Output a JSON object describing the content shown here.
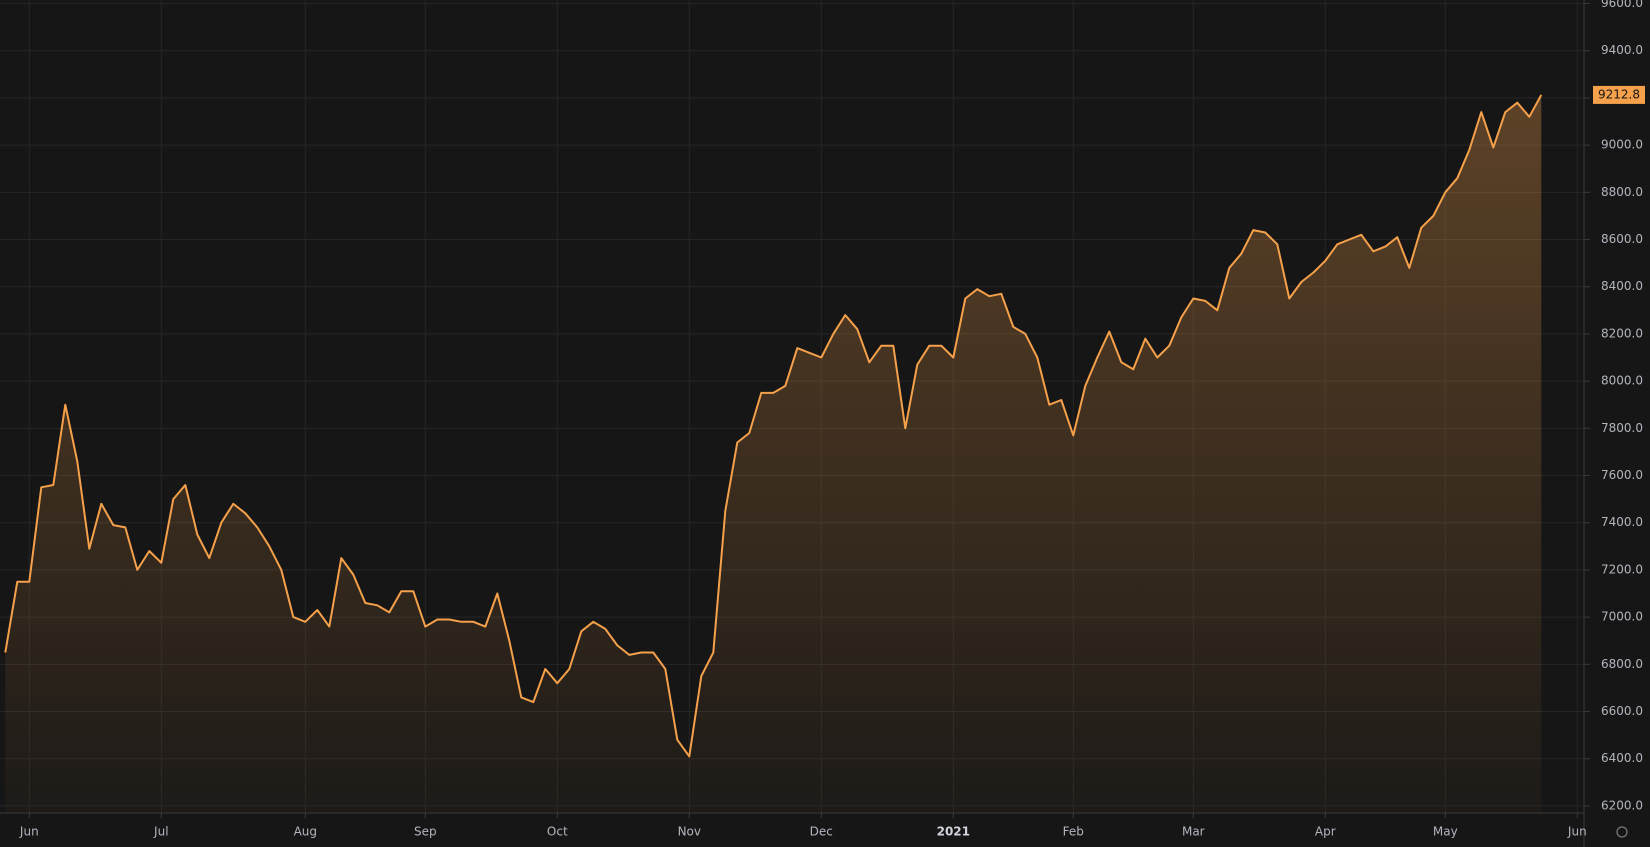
{
  "chart_data": {
    "type": "area",
    "color": "#f5a04a",
    "grid": true,
    "ylim": [
      6170,
      9615
    ],
    "yticks": [
      {
        "value": 6200,
        "label": "6200.0"
      },
      {
        "value": 6400,
        "label": "6400.0"
      },
      {
        "value": 6600,
        "label": "6600.0"
      },
      {
        "value": 6800,
        "label": "6800.0"
      },
      {
        "value": 7000,
        "label": "7000.0"
      },
      {
        "value": 7200,
        "label": "7200.0"
      },
      {
        "value": 7400,
        "label": "7400.0"
      },
      {
        "value": 7600,
        "label": "7600.0"
      },
      {
        "value": 7800,
        "label": "7800.0"
      },
      {
        "value": 8000,
        "label": "8000.0"
      },
      {
        "value": 8200,
        "label": "8200.0"
      },
      {
        "value": 8400,
        "label": "8400.0"
      },
      {
        "value": 8600,
        "label": "8600.0"
      },
      {
        "value": 8800,
        "label": "8800.0"
      },
      {
        "value": 9000,
        "label": "9000.0"
      },
      {
        "value": 9200,
        "label": "9200.0"
      },
      {
        "value": 9400,
        "label": "9400.0"
      },
      {
        "value": 9600,
        "label": "9600.0"
      }
    ],
    "categories": [
      null,
      null,
      "Jun",
      null,
      null,
      null,
      null,
      null,
      null,
      null,
      null,
      null,
      null,
      "Jul",
      null,
      null,
      null,
      null,
      null,
      null,
      null,
      null,
      null,
      null,
      null,
      "Aug",
      null,
      null,
      null,
      null,
      null,
      null,
      null,
      null,
      null,
      "Sep",
      null,
      null,
      null,
      null,
      null,
      null,
      null,
      null,
      null,
      null,
      "Oct",
      null,
      null,
      null,
      null,
      null,
      null,
      null,
      null,
      null,
      null,
      "Nov",
      null,
      null,
      null,
      null,
      null,
      null,
      null,
      null,
      null,
      null,
      "Dec",
      null,
      null,
      null,
      null,
      null,
      null,
      null,
      null,
      null,
      null,
      "2021",
      null,
      null,
      null,
      null,
      null,
      null,
      null,
      null,
      null,
      "Feb",
      null,
      null,
      null,
      null,
      null,
      null,
      null,
      null,
      null,
      "Mar",
      null,
      null,
      null,
      null,
      null,
      null,
      null,
      null,
      null,
      null,
      "Apr",
      null,
      null,
      null,
      null,
      null,
      null,
      null,
      null,
      null,
      "May",
      null,
      null,
      null,
      null,
      null,
      null,
      null,
      null,
      null,
      null,
      "Jun"
    ],
    "values": [
      6850,
      7150,
      7150,
      7550,
      7560,
      7900,
      7660,
      7290,
      7480,
      7390,
      7380,
      7200,
      7280,
      7230,
      7500,
      7560,
      7350,
      7250,
      7400,
      7480,
      7440,
      7380,
      7300,
      7200,
      7000,
      6980,
      7030,
      6960,
      7250,
      7180,
      7060,
      7050,
      7020,
      7110,
      7110,
      6960,
      6990,
      6990,
      6980,
      6980,
      6960,
      7100,
      6900,
      6660,
      6640,
      6780,
      6720,
      6780,
      6940,
      6980,
      6950,
      6880,
      6840,
      6850,
      6850,
      6780,
      6480,
      6410,
      6750,
      6850,
      7450,
      7740,
      7780,
      7950,
      7950,
      7980,
      8140,
      8120,
      8100,
      8200,
      8280,
      8220,
      8080,
      8150,
      8150,
      7800,
      8070,
      8150,
      8150,
      8100,
      8350,
      8390,
      8360,
      8370,
      8230,
      8200,
      8100,
      7900,
      7920,
      7770,
      7980,
      8100,
      8210,
      8080,
      8050,
      8180,
      8100,
      8150,
      8270,
      8350,
      8340,
      8300,
      8480,
      8540,
      8640,
      8630,
      8580,
      8350,
      8420,
      8460,
      8510,
      8580,
      8600,
      8620,
      8550,
      8570,
      8610,
      8480,
      8650,
      8700,
      8800,
      8860,
      8980,
      9140,
      8990,
      9140,
      9180,
      9120,
      9212.8,
      null,
      null,
      null
    ],
    "last_price": 9212.8
  }
}
